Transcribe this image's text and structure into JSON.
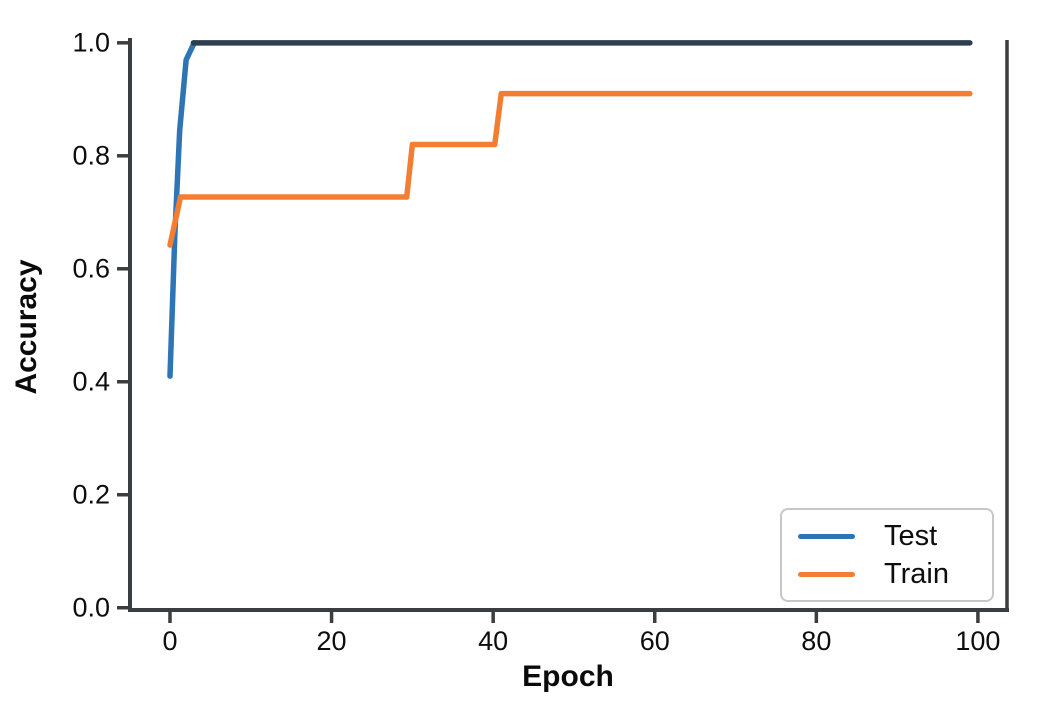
{
  "chart_data": {
    "type": "line",
    "title": "",
    "xlabel": "Epoch",
    "ylabel": "Accuracy",
    "xlim": [
      -4.95,
      103.6
    ],
    "ylim": [
      -0.004,
      1.005
    ],
    "x_tick_values": [
      0,
      20,
      40,
      60,
      80,
      100
    ],
    "x_tick_labels": [
      "0",
      "20",
      "40",
      "60",
      "80",
      "100"
    ],
    "y_tick_values": [
      0.0,
      0.2,
      0.4,
      0.6,
      0.8,
      1.0
    ],
    "y_tick_labels": [
      "0.0",
      "0.2",
      "0.4",
      "0.6",
      "0.8",
      "1.0"
    ],
    "grid": false,
    "axis_color": "#3a3e41",
    "spines": [
      "left",
      "bottom",
      "right"
    ],
    "legend_position": "lower-right",
    "legend": {
      "entries": [
        {
          "label": "Test",
          "color": "#2e75b6"
        },
        {
          "label": "Train",
          "color": "#f27e33"
        }
      ]
    },
    "series": [
      {
        "name": "Test",
        "color": "#2e75b6",
        "segments": [
          {
            "color": "#2e75b6",
            "points": [
              [
                0,
                0.41
              ],
              [
                0.6,
                0.66
              ],
              [
                1.2,
                0.845
              ],
              [
                2.0,
                0.97
              ],
              [
                3.0,
                1.0
              ]
            ]
          },
          {
            "color": "#2c3e50",
            "points": [
              [
                2.9,
                1.0
              ],
              [
                99,
                1.0
              ]
            ]
          }
        ]
      },
      {
        "name": "Train",
        "color": "#f27e33",
        "segments": [
          {
            "color": "#f27e33",
            "points": [
              [
                0,
                0.642
              ],
              [
                1.3,
                0.727
              ],
              [
                29.3,
                0.727
              ],
              [
                30,
                0.82
              ],
              [
                40.2,
                0.82
              ],
              [
                41,
                0.91
              ],
              [
                99,
                0.91
              ]
            ]
          }
        ]
      }
    ]
  }
}
